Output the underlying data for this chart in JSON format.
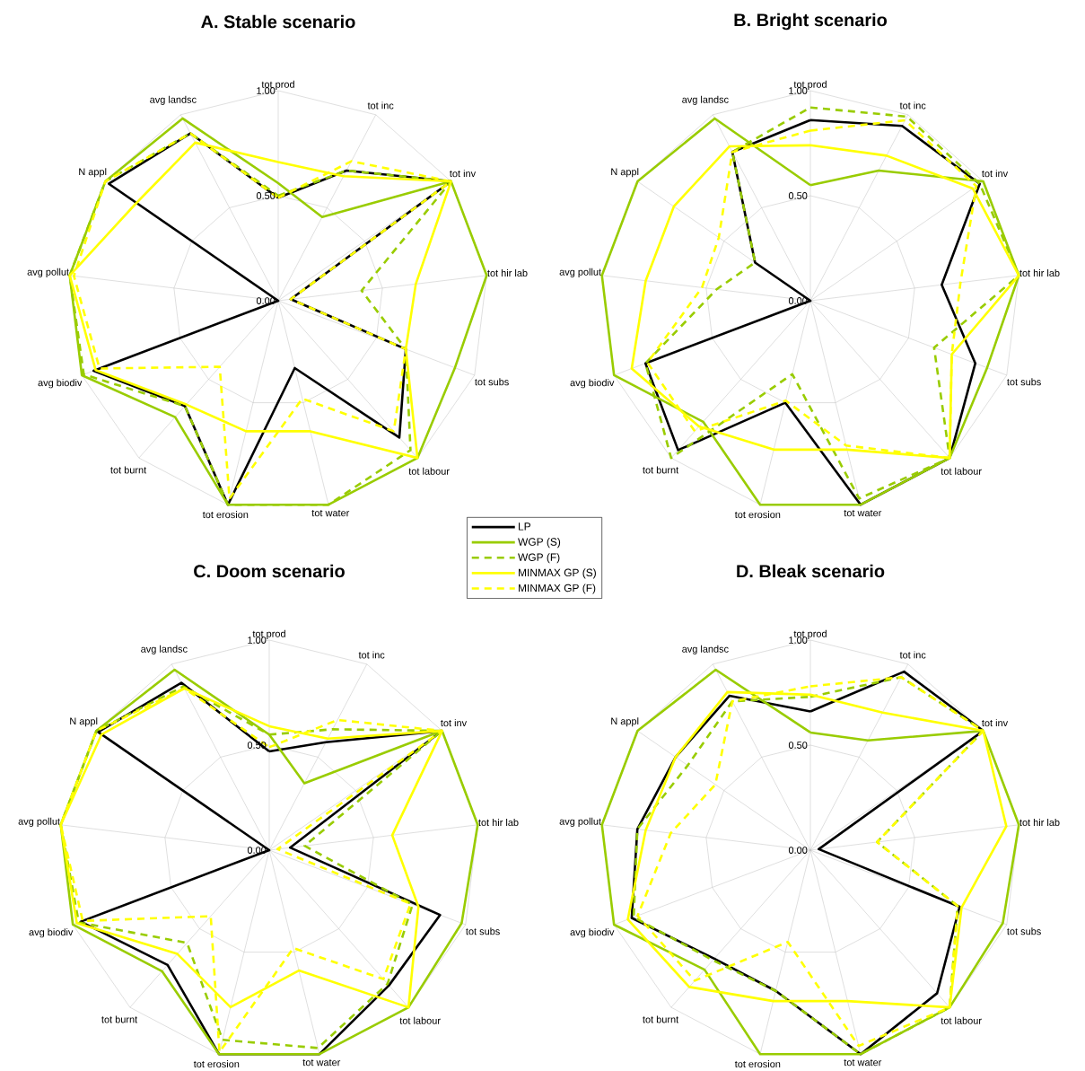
{
  "chart_data": [
    {
      "type": "radar",
      "title": "A. Stable scenario",
      "categories": [
        "tot prod",
        "tot inc",
        "tot inv",
        "tot hir lab",
        "tot subs",
        "tot labour",
        "tot water",
        "tot erosion",
        "tot burnt",
        "avg biodiv",
        "avg pollut",
        "N appl",
        "avg landsc"
      ],
      "ylim": [
        0,
        1
      ],
      "yticks": [
        {
          "value": 0,
          "label": "0.00"
        },
        {
          "value": 0.5,
          "label": "0.50"
        },
        {
          "value": 1,
          "label": "1.00"
        }
      ],
      "grid": true,
      "legend": "bottom right",
      "series": [
        {
          "name": "LP",
          "color": "#000000",
          "line_style": "solid",
          "values": [
            0.49,
            0.7,
            1.0,
            0.06,
            0.65,
            0.87,
            0.33,
            1.0,
            0.67,
            0.94,
            0,
            0.98,
            0.9
          ]
        },
        {
          "name": "WGP (S)",
          "color": "#99cc00",
          "line_style": "solid",
          "values": [
            0.56,
            0.45,
            1.0,
            1.0,
            0.9,
            1.0,
            1.0,
            1.0,
            0.74,
            1.0,
            1.0,
            1.0,
            0.98
          ]
        },
        {
          "name": "WGP (F)",
          "color": "#99cc00",
          "line_style": "dashed",
          "values": [
            0.5,
            0.7,
            1.0,
            0.4,
            0.65,
            0.95,
            1.0,
            1.0,
            0.67,
            0.99,
            1.0,
            1.0,
            0.9
          ]
        },
        {
          "name": "MINMAX GP (S)",
          "color": "#ffff00",
          "line_style": "solid",
          "values": [
            0.66,
            0.67,
            1.0,
            0.66,
            0.65,
            1.0,
            0.64,
            0.64,
            0.66,
            0.93,
            1.0,
            0.82,
            0.85
          ]
        },
        {
          "name": "MINMAX GP (F)",
          "color": "#ffff00",
          "line_style": "dashed",
          "values": [
            0.49,
            0.75,
            1.0,
            0.06,
            0.65,
            0.83,
            0.48,
            0.97,
            0.42,
            0.91,
            0.98,
            1.0,
            0.9
          ]
        }
      ]
    },
    {
      "type": "radar",
      "title": "B. Bright scenario",
      "categories": [
        "tot prod",
        "tot inc",
        "tot inv",
        "tot hir lab",
        "tot subs",
        "tot labour",
        "tot water",
        "tot erosion",
        "tot burnt",
        "avg biodiv",
        "avg pollut",
        "N appl",
        "avg landsc"
      ],
      "ylim": [
        0,
        1
      ],
      "yticks": [
        {
          "value": 0,
          "label": "0.00"
        },
        {
          "value": 0.5,
          "label": "0.50"
        },
        {
          "value": 1,
          "label": "1.00"
        }
      ],
      "grid": true,
      "series": [
        {
          "color": "#000000",
          "line_style": "solid",
          "values": [
            0.86,
            0.94,
            0.98,
            0.63,
            0.84,
            1.0,
            1.0,
            0.5,
            0.95,
            0.84,
            0,
            0.32,
            0.8
          ]
        },
        {
          "color": "#99cc00",
          "line_style": "solid",
          "values": [
            0.55,
            0.7,
            1.0,
            1.0,
            0.9,
            1.0,
            1.0,
            1.0,
            0.77,
            1.0,
            1.0,
            1.0,
            0.98
          ]
        },
        {
          "color": "#99cc00",
          "line_style": "dashed",
          "values": [
            0.92,
            0.99,
            0.98,
            1.0,
            0.63,
            1.0,
            0.97,
            0.36,
            1.0,
            0.84,
            0.45,
            0.32,
            0.8
          ]
        },
        {
          "color": "#ffff00",
          "line_style": "solid",
          "values": [
            0.74,
            0.78,
            0.94,
            1.0,
            0.72,
            1.0,
            0.73,
            0.73,
            0.8,
            0.91,
            0.79,
            0.79,
            0.83
          ]
        },
        {
          "color": "#ffff00",
          "line_style": "dashed",
          "values": [
            0.81,
            0.97,
            0.96,
            0.72,
            0.72,
            1.0,
            0.71,
            0.49,
            0.83,
            0.83,
            0.52,
            0.53,
            0.8
          ]
        }
      ]
    },
    {
      "type": "radar",
      "title": "C. Doom scenario",
      "categories": [
        "tot prod",
        "tot inc",
        "tot inv",
        "tot hir lab",
        "tot subs",
        "tot labour",
        "tot water",
        "tot erosion",
        "tot burnt",
        "avg biodiv",
        "avg pollut",
        "N appl",
        "avg landsc"
      ],
      "ylim": [
        0,
        1
      ],
      "yticks": [
        {
          "value": 0,
          "label": "0.00"
        },
        {
          "value": 0.5,
          "label": "0.50"
        },
        {
          "value": 1,
          "label": "1.00"
        }
      ],
      "grid": true,
      "series": [
        {
          "color": "#000000",
          "line_style": "solid",
          "values": [
            0.47,
            0.58,
            1.0,
            0.1,
            0.87,
            0.86,
            1.0,
            1.0,
            0.73,
            0.96,
            0,
            0.99,
            0.9
          ]
        },
        {
          "color": "#99cc00",
          "line_style": "solid",
          "values": [
            0.55,
            0.36,
            1.0,
            1.0,
            0.98,
            1.0,
            1.0,
            1.0,
            0.77,
            1.0,
            1.0,
            1.0,
            0.97
          ]
        },
        {
          "color": "#99cc00",
          "line_style": "dashed",
          "values": [
            0.55,
            0.65,
            1.0,
            0.17,
            0.73,
            0.85,
            0.97,
            0.93,
            0.59,
            0.97,
            1.0,
            1.0,
            0.88
          ]
        },
        {
          "color": "#ffff00",
          "line_style": "solid",
          "values": [
            0.59,
            0.6,
            1.0,
            0.59,
            0.76,
            1.0,
            0.59,
            0.77,
            0.66,
            0.98,
            1.0,
            0.97,
            0.87
          ]
        },
        {
          "color": "#ffff00",
          "line_style": "dashed",
          "values": [
            0.49,
            0.7,
            1.0,
            0.04,
            0.72,
            0.82,
            0.48,
            0.99,
            0.42,
            0.95,
            1.0,
            1.0,
            0.87
          ]
        }
      ]
    },
    {
      "type": "radar",
      "title": "D. Bleak scenario",
      "categories": [
        "tot prod",
        "tot inc",
        "tot inv",
        "tot hir lab",
        "tot subs",
        "tot labour",
        "tot water",
        "tot erosion",
        "tot burnt",
        "avg biodiv",
        "avg pollut",
        "N appl",
        "avg landsc"
      ],
      "ylim": [
        0,
        1
      ],
      "yticks": [
        {
          "value": 0,
          "label": "0.00"
        },
        {
          "value": 0.5,
          "label": "0.50"
        },
        {
          "value": 1,
          "label": "1.00"
        }
      ],
      "grid": true,
      "series": [
        {
          "color": "#000000",
          "line_style": "solid",
          "values": [
            0.66,
            0.96,
            1.0,
            0.04,
            0.76,
            0.91,
            1.0,
            0.69,
            0.69,
            0.91,
            0.83,
            0.78,
            0.83
          ]
        },
        {
          "color": "#99cc00",
          "line_style": "solid",
          "values": [
            0.56,
            0.59,
            1.0,
            1.0,
            0.98,
            1.0,
            1.0,
            1.0,
            0.76,
            1.0,
            1.0,
            1.0,
            0.97
          ]
        },
        {
          "color": "#99cc00",
          "line_style": "dashed",
          "values": [
            0.73,
            0.93,
            1.0,
            0.32,
            0.75,
            1.0,
            1.0,
            0.69,
            0.7,
            0.9,
            0.83,
            0.71,
            0.8
          ]
        },
        {
          "color": "#ffff00",
          "line_style": "solid",
          "values": [
            0.74,
            0.74,
            1.0,
            0.94,
            0.77,
            1.0,
            0.74,
            0.74,
            0.87,
            0.93,
            0.79,
            0.78,
            0.85
          ]
        },
        {
          "color": "#ffff00",
          "line_style": "dashed",
          "values": [
            0.78,
            0.93,
            1.0,
            0.32,
            0.75,
            1.0,
            0.96,
            0.45,
            0.83,
            0.88,
            0.67,
            0.55,
            0.8
          ]
        }
      ]
    }
  ]
}
